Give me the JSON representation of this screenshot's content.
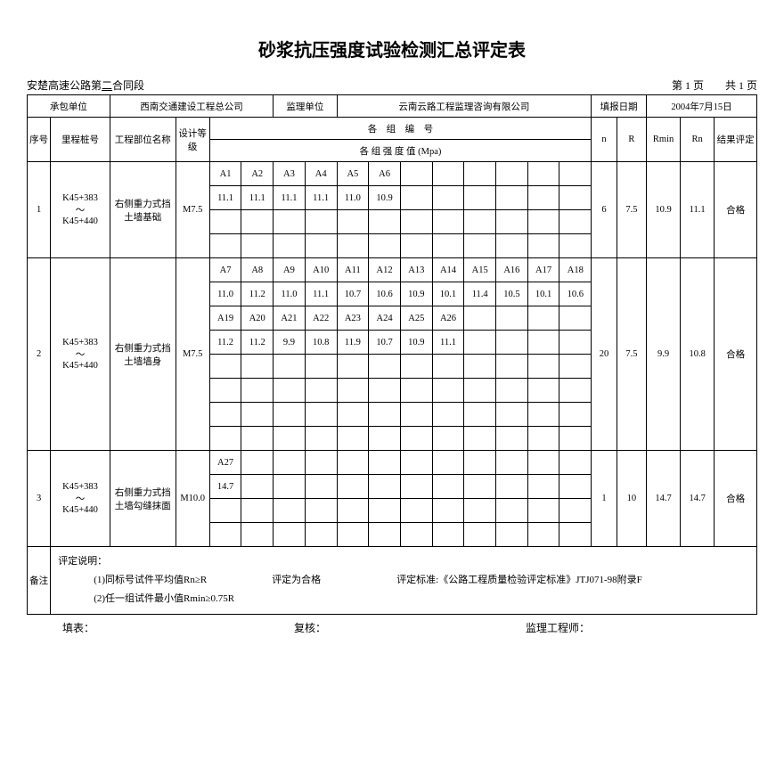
{
  "title": "砂浆抗压强度试验检测汇总评定表",
  "header": {
    "contract_prefix": "安楚高速公路第",
    "contract_no": "二",
    "contract_suffix": "合同段",
    "page_info": "第 1 页　　共 1 页"
  },
  "info_row": {
    "contractor_label": "承包单位",
    "contractor": "西南交通建设工程总公司",
    "supervisor_label": "监理单位",
    "supervisor": "云南云路工程监理咨询有限公司",
    "date_label": "填报日期",
    "date": "2004年7月15日"
  },
  "columns": {
    "seq": "序号",
    "pile": "里程桩号",
    "part": "工程部位名称",
    "grade": "设计等级",
    "group_no": "各　组　编　号",
    "group_val": "各 组 强 度 值 (Mpa)",
    "n": "n",
    "R": "R",
    "Rmin": "Rmin",
    "Rn": "Rn",
    "result": "结果评定"
  },
  "rows": [
    {
      "seq": "1",
      "pile": "K45+383\n～\nK45+440",
      "part": "右侧重力式挡土墙基础",
      "grade": "M7.5",
      "groups": [
        [
          "A1",
          "A2",
          "A3",
          "A4",
          "A5",
          "A6",
          "",
          "",
          "",
          "",
          "",
          ""
        ],
        [
          "11.1",
          "11.1",
          "11.1",
          "11.1",
          "11.0",
          "10.9",
          "",
          "",
          "",
          "",
          "",
          ""
        ],
        [
          "",
          "",
          "",
          "",
          "",
          "",
          "",
          "",
          "",
          "",
          "",
          ""
        ],
        [
          "",
          "",
          "",
          "",
          "",
          "",
          "",
          "",
          "",
          "",
          "",
          ""
        ]
      ],
      "n": "6",
      "R": "7.5",
      "Rmin": "10.9",
      "Rn": "11.1",
      "result": "合格"
    },
    {
      "seq": "2",
      "pile": "K45+383\n～\nK45+440",
      "part": "右侧重力式挡土墙墙身",
      "grade": "M7.5",
      "groups": [
        [
          "A7",
          "A8",
          "A9",
          "A10",
          "A11",
          "A12",
          "A13",
          "A14",
          "A15",
          "A16",
          "A17",
          "A18"
        ],
        [
          "11.0",
          "11.2",
          "11.0",
          "11.1",
          "10.7",
          "10.6",
          "10.9",
          "10.1",
          "11.4",
          "10.5",
          "10.1",
          "10.6"
        ],
        [
          "A19",
          "A20",
          "A21",
          "A22",
          "A23",
          "A24",
          "A25",
          "A26",
          "",
          "",
          "",
          ""
        ],
        [
          "11.2",
          "11.2",
          "9.9",
          "10.8",
          "11.9",
          "10.7",
          "10.9",
          "11.1",
          "",
          "",
          "",
          ""
        ],
        [
          "",
          "",
          "",
          "",
          "",
          "",
          "",
          "",
          "",
          "",
          "",
          ""
        ],
        [
          "",
          "",
          "",
          "",
          "",
          "",
          "",
          "",
          "",
          "",
          "",
          ""
        ],
        [
          "",
          "",
          "",
          "",
          "",
          "",
          "",
          "",
          "",
          "",
          "",
          ""
        ],
        [
          "",
          "",
          "",
          "",
          "",
          "",
          "",
          "",
          "",
          "",
          "",
          ""
        ]
      ],
      "n": "20",
      "R": "7.5",
      "Rmin": "9.9",
      "Rn": "10.8",
      "result": "合格"
    },
    {
      "seq": "3",
      "pile": "K45+383\n～\nK45+440",
      "part": "右侧重力式挡土墙勾缝抹面",
      "grade": "M10.0",
      "groups": [
        [
          "A27",
          "",
          "",
          "",
          "",
          "",
          "",
          "",
          "",
          "",
          "",
          ""
        ],
        [
          "14.7",
          "",
          "",
          "",
          "",
          "",
          "",
          "",
          "",
          "",
          "",
          ""
        ],
        [
          "",
          "",
          "",
          "",
          "",
          "",
          "",
          "",
          "",
          "",
          "",
          ""
        ],
        [
          "",
          "",
          "",
          "",
          "",
          "",
          "",
          "",
          "",
          "",
          "",
          ""
        ]
      ],
      "n": "1",
      "R": "10",
      "Rmin": "14.7",
      "Rn": "14.7",
      "result": "合格"
    }
  ],
  "notes": {
    "label": "备注",
    "heading": "评定说明：",
    "line1": "(1)同标号试件平均值Rn≥R",
    "mid": "评定为合格",
    "std": "评定标准:《公路工程质量检验评定标准》JTJ071-98附录F",
    "line2": "(2)任一组试件最小值Rmin≥0.75R"
  },
  "footer": {
    "filler": "填表：",
    "checker": "复核：",
    "engineer": "监理工程师："
  },
  "style": {
    "num_cols": 12
  }
}
